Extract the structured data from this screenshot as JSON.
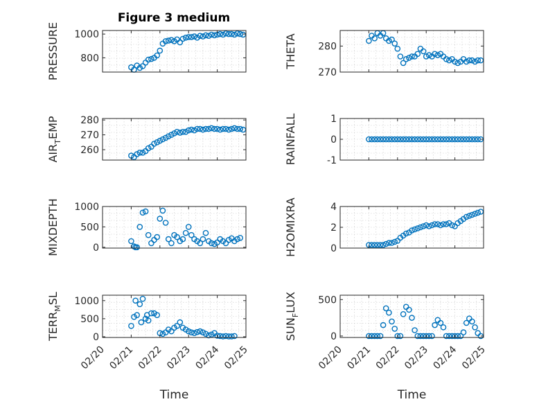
{
  "figure_title": "Figure 3 medium",
  "colors": {
    "marker": "#0072BD",
    "axis": "#262626",
    "grid": "#c8c8c8"
  },
  "xtick_labels": [
    "02/20",
    "02/21",
    "02/22",
    "02/23",
    "02/24",
    "02/25"
  ],
  "xlabel": "Time",
  "chart_data": [
    {
      "type": "scatter",
      "name": "PRESSURE",
      "ylabel": "PRESSURE",
      "xlim": [
        "02/20",
        "02/25"
      ],
      "ylim": [
        680,
        1030
      ],
      "yticks": [
        800,
        1000
      ],
      "grid": true,
      "x": [
        21,
        21.1,
        21.2,
        21.3,
        21.4,
        21.5,
        21.6,
        21.7,
        21.8,
        21.9,
        22,
        22.1,
        22.2,
        22.3,
        22.4,
        22.5,
        22.6,
        22.7,
        22.8,
        22.9,
        23,
        23.1,
        23.2,
        23.3,
        23.4,
        23.5,
        23.6,
        23.7,
        23.8,
        23.9,
        24,
        24.1,
        24.2,
        24.3,
        24.4,
        24.5,
        24.6,
        24.7,
        24.8,
        24.9
      ],
      "y": [
        720,
        700,
        735,
        715,
        730,
        760,
        785,
        790,
        800,
        820,
        860,
        920,
        940,
        945,
        950,
        940,
        955,
        930,
        960,
        970,
        975,
        975,
        980,
        970,
        985,
        980,
        990,
        985,
        995,
        990,
        995,
        1000,
        995,
        1005,
        1000,
        1000,
        995,
        1005,
        1000,
        995
      ]
    },
    {
      "type": "scatter",
      "name": "THETA",
      "ylabel": "THETA",
      "xlim": [
        "02/20",
        "02/25"
      ],
      "ylim": [
        270,
        286
      ],
      "yticks": [
        270,
        280
      ],
      "grid": true,
      "x": [
        21,
        21.1,
        21.2,
        21.3,
        21.4,
        21.5,
        21.6,
        21.7,
        21.8,
        21.9,
        22,
        22.1,
        22.2,
        22.3,
        22.4,
        22.5,
        22.6,
        22.7,
        22.8,
        22.9,
        23,
        23.1,
        23.2,
        23.3,
        23.4,
        23.5,
        23.6,
        23.7,
        23.8,
        23.9,
        24,
        24.1,
        24.2,
        24.3,
        24.4,
        24.5,
        24.6,
        24.7,
        24.8,
        24.9
      ],
      "y": [
        282,
        284,
        283,
        285,
        284,
        285,
        283,
        282,
        282.5,
        281,
        279,
        276,
        273.5,
        275,
        275.5,
        276,
        276,
        277,
        279,
        278,
        276,
        276.5,
        276,
        277,
        276.5,
        277,
        276,
        275,
        274.5,
        275,
        274,
        273.5,
        274,
        275,
        274,
        274.5,
        274.5,
        274,
        274.5,
        274.5
      ]
    },
    {
      "type": "scatter",
      "name": "AIR_TEMP",
      "ylabel": "AIR_TEMP",
      "xlim": [
        "02/20",
        "02/25"
      ],
      "ylim": [
        253,
        281
      ],
      "yticks": [
        260,
        270,
        280
      ],
      "grid": true,
      "x": [
        21,
        21.1,
        21.2,
        21.3,
        21.4,
        21.5,
        21.6,
        21.7,
        21.8,
        21.9,
        22,
        22.1,
        22.2,
        22.3,
        22.4,
        22.5,
        22.6,
        22.7,
        22.8,
        22.9,
        23,
        23.1,
        23.2,
        23.3,
        23.4,
        23.5,
        23.6,
        23.7,
        23.8,
        23.9,
        24,
        24.1,
        24.2,
        24.3,
        24.4,
        24.5,
        24.6,
        24.7,
        24.8,
        24.9
      ],
      "y": [
        256,
        255,
        257,
        258,
        258,
        259,
        261,
        262,
        264,
        265,
        266,
        267,
        268,
        269,
        270,
        271,
        272,
        271.5,
        272,
        272,
        273,
        273.5,
        273,
        274,
        274,
        273.5,
        274,
        274,
        274.5,
        274,
        274,
        273.5,
        274,
        274,
        273.5,
        274,
        274.5,
        274,
        274,
        273.5
      ]
    },
    {
      "type": "scatter",
      "name": "RAINFALL",
      "ylabel": "RAINFALL",
      "xlim": [
        "02/20",
        "02/25"
      ],
      "ylim": [
        -1,
        1
      ],
      "yticks": [
        -1,
        0,
        1
      ],
      "grid": true,
      "x": [
        21,
        21.1,
        21.2,
        21.3,
        21.4,
        21.5,
        21.6,
        21.7,
        21.8,
        21.9,
        22,
        22.1,
        22.2,
        22.3,
        22.4,
        22.5,
        22.6,
        22.7,
        22.8,
        22.9,
        23,
        23.1,
        23.2,
        23.3,
        23.4,
        23.5,
        23.6,
        23.7,
        23.8,
        23.9,
        24,
        24.1,
        24.2,
        24.3,
        24.4,
        24.5,
        24.6,
        24.7,
        24.8,
        24.9
      ],
      "y": [
        0,
        0,
        0,
        0,
        0,
        0,
        0,
        0,
        0,
        0,
        0,
        0,
        0,
        0,
        0,
        0,
        0,
        0,
        0,
        0,
        0,
        0,
        0,
        0,
        0,
        0,
        0,
        0,
        0,
        0,
        0,
        0,
        0,
        0,
        0,
        0,
        0,
        0,
        0,
        0
      ]
    },
    {
      "type": "scatter",
      "name": "MIXDEPTH",
      "ylabel": "MIXDEPTH",
      "xlim": [
        "02/20",
        "02/25"
      ],
      "ylim": [
        -20,
        1000
      ],
      "yticks": [
        0,
        500,
        1000
      ],
      "grid": true,
      "x": [
        21,
        21.1,
        21.15,
        21.2,
        21.3,
        21.4,
        21.5,
        21.6,
        21.7,
        21.8,
        21.9,
        22,
        22.1,
        22.2,
        22.3,
        22.4,
        22.5,
        22.6,
        22.7,
        22.8,
        22.9,
        23,
        23.1,
        23.2,
        23.3,
        23.4,
        23.5,
        23.6,
        23.7,
        23.8,
        23.9,
        24,
        24.1,
        24.2,
        24.3,
        24.4,
        24.5,
        24.6,
        24.7,
        24.8
      ],
      "y": [
        150,
        20,
        0,
        0,
        500,
        850,
        880,
        300,
        100,
        180,
        250,
        700,
        900,
        600,
        200,
        100,
        300,
        250,
        150,
        200,
        350,
        500,
        300,
        200,
        150,
        100,
        200,
        350,
        150,
        100,
        80,
        120,
        200,
        150,
        100,
        180,
        220,
        150,
        200,
        230
      ]
    },
    {
      "type": "scatter",
      "name": "H2OMIXRA",
      "ylabel": "H2OMIXRA",
      "xlim": [
        "02/20",
        "02/25"
      ],
      "ylim": [
        0,
        4
      ],
      "yticks": [
        0,
        2,
        4
      ],
      "grid": true,
      "x": [
        21,
        21.1,
        21.2,
        21.3,
        21.4,
        21.5,
        21.6,
        21.7,
        21.8,
        21.9,
        22,
        22.1,
        22.2,
        22.3,
        22.4,
        22.5,
        22.6,
        22.7,
        22.8,
        22.9,
        23,
        23.1,
        23.2,
        23.3,
        23.4,
        23.5,
        23.6,
        23.7,
        23.8,
        23.9,
        24,
        24.1,
        24.2,
        24.3,
        24.4,
        24.5,
        24.6,
        24.7,
        24.8,
        24.9
      ],
      "y": [
        0.3,
        0.3,
        0.3,
        0.3,
        0.3,
        0.3,
        0.4,
        0.5,
        0.5,
        0.6,
        0.7,
        1.0,
        1.2,
        1.4,
        1.5,
        1.7,
        1.8,
        1.9,
        2.0,
        2.1,
        2.2,
        2.1,
        2.2,
        2.3,
        2.3,
        2.2,
        2.3,
        2.3,
        2.4,
        2.2,
        2.1,
        2.4,
        2.6,
        2.8,
        3.0,
        3.1,
        3.2,
        3.3,
        3.4,
        3.5
      ]
    },
    {
      "type": "scatter",
      "name": "TERR_MSL",
      "ylabel": "TERR_MSL",
      "xlim": [
        "02/20",
        "02/25"
      ],
      "ylim": [
        -20,
        1150
      ],
      "yticks": [
        0,
        500,
        1000
      ],
      "grid": true,
      "x": [
        21,
        21.1,
        21.15,
        21.2,
        21.3,
        21.35,
        21.4,
        21.5,
        21.55,
        21.6,
        21.7,
        21.8,
        21.9,
        22,
        22.1,
        22.2,
        22.3,
        22.4,
        22.5,
        22.6,
        22.7,
        22.8,
        22.9,
        23,
        23.1,
        23.2,
        23.3,
        23.4,
        23.5,
        23.6,
        23.7,
        23.8,
        23.9,
        24,
        24.1,
        24.2,
        24.3,
        24.4,
        24.5,
        24.6
      ],
      "y": [
        300,
        550,
        1000,
        600,
        900,
        400,
        1050,
        500,
        600,
        450,
        650,
        650,
        600,
        100,
        80,
        120,
        200,
        150,
        250,
        300,
        400,
        250,
        200,
        150,
        120,
        100,
        130,
        150,
        120,
        80,
        40,
        60,
        100,
        30,
        20,
        10,
        20,
        10,
        10,
        20
      ]
    },
    {
      "type": "scatter",
      "name": "SUN_FLUX",
      "ylabel": "SUN_FLUX",
      "xlim": [
        "02/20",
        "02/25"
      ],
      "ylim": [
        -20,
        560
      ],
      "yticks": [
        0,
        500
      ],
      "grid": true,
      "x": [
        21,
        21.1,
        21.2,
        21.3,
        21.4,
        21.5,
        21.6,
        21.7,
        21.8,
        21.9,
        22,
        22.1,
        22.2,
        22.3,
        22.4,
        22.5,
        22.6,
        22.7,
        22.8,
        22.9,
        23,
        23.1,
        23.2,
        23.3,
        23.4,
        23.5,
        23.6,
        23.7,
        23.8,
        23.9,
        24,
        24.1,
        24.2,
        24.3,
        24.4,
        24.5,
        24.6,
        24.7,
        24.8,
        24.9
      ],
      "y": [
        0,
        0,
        0,
        0,
        0,
        150,
        380,
        320,
        200,
        100,
        0,
        0,
        300,
        400,
        360,
        250,
        80,
        0,
        0,
        0,
        0,
        0,
        0,
        150,
        220,
        180,
        120,
        0,
        0,
        0,
        0,
        0,
        0,
        50,
        180,
        240,
        200,
        120,
        40,
        0
      ]
    }
  ]
}
